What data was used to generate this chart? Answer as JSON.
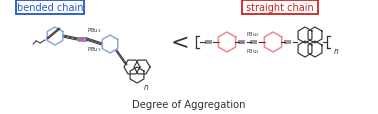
{
  "bended_label": "bended chain",
  "straight_label": "straight chain",
  "bottom_label": "Degree of Aggregation",
  "bended_box_color": "#2255cc",
  "straight_box_color": "#cc2222",
  "bended_text_color": "#2255cc",
  "straight_text_color": "#cc2222",
  "pt_color": "#cc44cc",
  "blue_ring_color": "#88aadd",
  "red_ring_color": "#ee8888",
  "dark_color": "#333333",
  "chain_color": "#555555",
  "grey_block": "#999999",
  "background": "#ffffff",
  "fig_w": 3.78,
  "fig_h": 1.15,
  "dpi": 100
}
